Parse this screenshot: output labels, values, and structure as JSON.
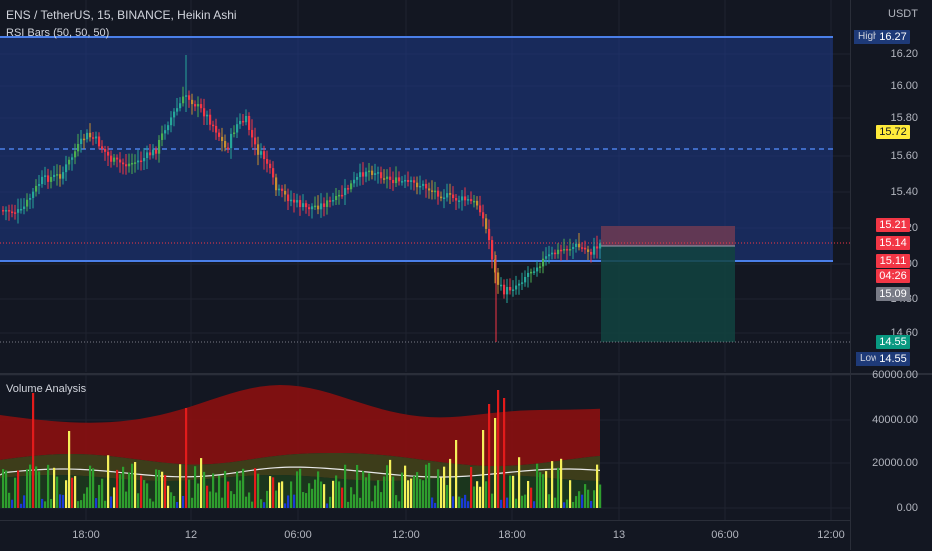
{
  "header": {
    "symbol_line": "ENS / TetherUS, 15, BINANCE, Heikin Ashi",
    "indicator": "RSI Bars (50, 50, 50)",
    "currency": "USDT"
  },
  "volume_pane": {
    "title": "Volume Analysis"
  },
  "price_axis": {
    "ticks": [
      "16.20",
      "16.00",
      "15.80",
      "15.60",
      "15.40",
      "15.20",
      "15.00",
      "14.80",
      "14.60"
    ],
    "labels": {
      "high_tag": "High",
      "high_value": "16.27",
      "level_yellow": "15.72",
      "stop": "15.21",
      "last_price": "15.14",
      "red_price": "15.11",
      "countdown": "04:26",
      "gray_price": "15.09",
      "target": "14.55",
      "low_tag": "Low",
      "low_value": "14.55"
    }
  },
  "volume_axis": {
    "ticks": [
      "60000.00",
      "40000.00",
      "20000.00",
      "0.00"
    ]
  },
  "time_axis": {
    "ticks": [
      "18:00",
      "12",
      "06:00",
      "12:00",
      "18:00",
      "13",
      "06:00",
      "12:00"
    ]
  },
  "colors": {
    "background": "#131722",
    "zone_fill": "#1e3a8a",
    "zone_line": "#3b6fd9",
    "candle_up": "#26a69a",
    "candle_up_bright": "#4caf50",
    "candle_down": "#f23645",
    "candle_neutral": "#c78f2f",
    "stop_zone": "#5c2a3a",
    "target_zone": "#12433f",
    "volume_red_band": "#8b1010",
    "volume_olive_band": "#3f3f1a",
    "volume_bar_green": "#2e9e2e",
    "volume_bar_yellow": "#f5f05a",
    "volume_bar_red": "#e21b1b",
    "volume_bar_blue": "#1a3ad6",
    "yellow_label": "#ffeb3b",
    "red_label": "#f23645",
    "green_label": "#089981",
    "gray_label": "#787b86"
  }
}
